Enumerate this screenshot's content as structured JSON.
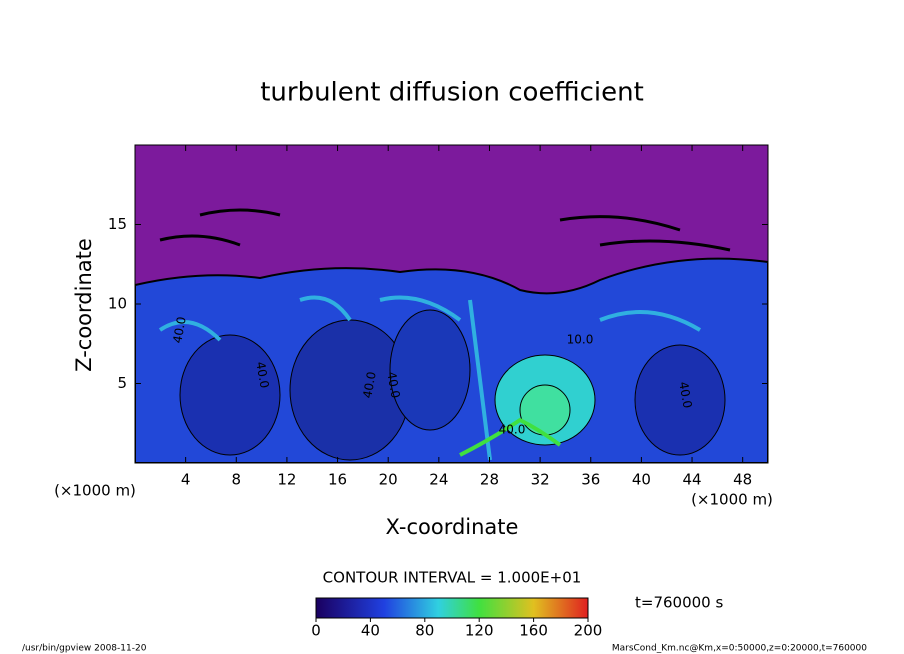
{
  "chart_data": {
    "type": "contour",
    "title": "turbulent diffusion coefficient",
    "xlabel": "X-coordinate",
    "ylabel": "Z-coordinate",
    "x_unit": "(×1000 m)",
    "xlim": [
      0,
      50
    ],
    "xticks": [
      4,
      8,
      12,
      16,
      20,
      24,
      28,
      32,
      36,
      40,
      44,
      48
    ],
    "ylim": [
      0,
      20
    ],
    "yticks": [
      5,
      10,
      15
    ],
    "contour_interval": "CONTOUR INTERVAL = 1.000E+01",
    "contour_labels": [
      "40.0",
      "40.0",
      "40.0",
      "40.0",
      "40.0",
      "10.0",
      "40.0"
    ],
    "colorbar_lim": [
      0,
      200
    ],
    "colorbar_ticks": [
      0,
      40,
      80,
      120,
      160,
      200
    ],
    "time_label": "t=760000 s",
    "footer_left": "/usr/bin/gpview   2008-11-20",
    "footer_right": "MarsCond_Km.nc@Km,x=0:50000,z=0:20000,t=760000"
  }
}
